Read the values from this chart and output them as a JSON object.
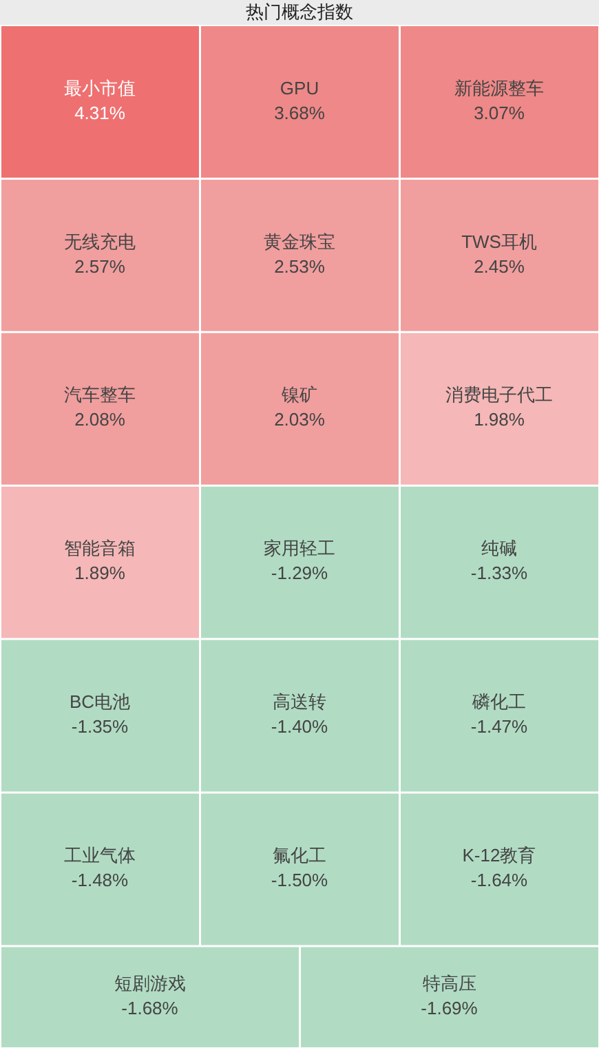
{
  "chart_data": {
    "type": "other",
    "title": "热门概念指数",
    "categories": [
      "最小市值",
      "GPU",
      "新能源整车",
      "无线充电",
      "黄金珠宝",
      "TWS耳机",
      "汽车整车",
      "镍矿",
      "消费电子代工",
      "智能音箱",
      "家用轻工",
      "纯碱",
      "BC电池",
      "高送转",
      "磷化工",
      "工业气体",
      "氟化工",
      "K-12教育",
      "短剧游戏",
      "特高压"
    ],
    "values": [
      4.31,
      3.68,
      3.07,
      2.57,
      2.53,
      2.45,
      2.08,
      2.03,
      1.98,
      1.89,
      -1.29,
      -1.33,
      -1.35,
      -1.4,
      -1.47,
      -1.48,
      -1.5,
      -1.64,
      -1.68,
      -1.69
    ],
    "value_labels": [
      "4.31%",
      "3.68%",
      "3.07%",
      "2.57%",
      "2.53%",
      "2.45%",
      "2.08%",
      "2.03%",
      "1.98%",
      "1.89%",
      "-1.29%",
      "-1.33%",
      "-1.35%",
      "-1.40%",
      "-1.47%",
      "-1.48%",
      "-1.50%",
      "-1.64%",
      "-1.68%",
      "-1.69%"
    ],
    "colors": [
      "#ee7070",
      "#ef8888",
      "#ef8888",
      "#f19e9e",
      "#f19e9e",
      "#f19e9e",
      "#f19e9e",
      "#f19e9e",
      "#f5b7b7",
      "#f5b7b7",
      "#b1dcc3",
      "#b1dcc3",
      "#b1dcc3",
      "#b1dcc3",
      "#b1dcc3",
      "#b1dcc3",
      "#b1dcc3",
      "#b1dcc3",
      "#b1dcc3",
      "#b1dcc3"
    ]
  }
}
